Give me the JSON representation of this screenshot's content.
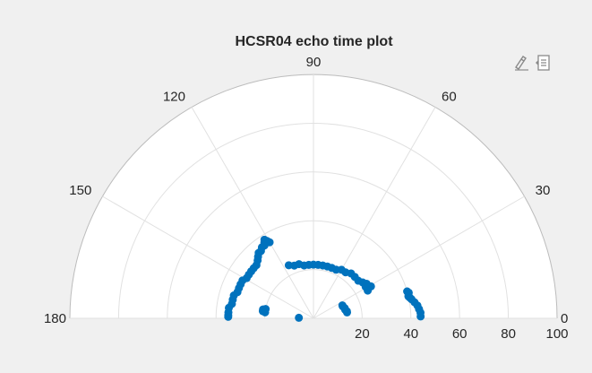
{
  "chart_data": {
    "type": "scatter",
    "coordinate_system": "polar",
    "title": "HCSR04 echo time plot",
    "theta_range_deg": [
      0,
      180
    ],
    "r_range": [
      0,
      100
    ],
    "theta_ticks": [
      0,
      30,
      60,
      90,
      120,
      150,
      180
    ],
    "theta_tick_labels": [
      "0",
      "30",
      "60",
      "90",
      "120",
      "150",
      "180"
    ],
    "r_ticks": [
      20,
      40,
      60,
      80,
      100
    ],
    "r_tick_labels": [
      "20",
      "40",
      "60",
      "80",
      "100"
    ],
    "grid": true,
    "marker_color": "#0072bd",
    "points": [
      {
        "theta": 1,
        "r": 44
      },
      {
        "theta": 3,
        "r": 44
      },
      {
        "theta": 5,
        "r": 43.5
      },
      {
        "theta": 7,
        "r": 43
      },
      {
        "theta": 9,
        "r": 42
      },
      {
        "theta": 11,
        "r": 41
      },
      {
        "theta": 12,
        "r": 40.5
      },
      {
        "theta": 13,
        "r": 40
      },
      {
        "theta": 15,
        "r": 40.5
      },
      {
        "theta": 16,
        "r": 40
      },
      {
        "theta": 10,
        "r": 14
      },
      {
        "theta": 12,
        "r": 14
      },
      {
        "theta": 15,
        "r": 13.5
      },
      {
        "theta": 18,
        "r": 13.5
      },
      {
        "theta": 22,
        "r": 13
      },
      {
        "theta": 24,
        "r": 13
      },
      {
        "theta": 27,
        "r": 25
      },
      {
        "theta": 29,
        "r": 27
      },
      {
        "theta": 31,
        "r": 25
      },
      {
        "theta": 33,
        "r": 26
      },
      {
        "theta": 36,
        "r": 25
      },
      {
        "theta": 40,
        "r": 24
      },
      {
        "theta": 45,
        "r": 24
      },
      {
        "theta": 50,
        "r": 24
      },
      {
        "theta": 55,
        "r": 23
      },
      {
        "theta": 60,
        "r": 23
      },
      {
        "theta": 65,
        "r": 22
      },
      {
        "theta": 70,
        "r": 22
      },
      {
        "theta": 75,
        "r": 22
      },
      {
        "theta": 80,
        "r": 22
      },
      {
        "theta": 85,
        "r": 22
      },
      {
        "theta": 90,
        "r": 22
      },
      {
        "theta": 95,
        "r": 22
      },
      {
        "theta": 100,
        "r": 22
      },
      {
        "theta": 105,
        "r": 23
      },
      {
        "theta": 110,
        "r": 23
      },
      {
        "theta": 115,
        "r": 24
      },
      {
        "theta": 120,
        "r": 36
      },
      {
        "theta": 121,
        "r": 37
      },
      {
        "theta": 122,
        "r": 38
      },
      {
        "theta": 123,
        "r": 37
      },
      {
        "theta": 124,
        "r": 36
      },
      {
        "theta": 126,
        "r": 36
      },
      {
        "theta": 128,
        "r": 35
      },
      {
        "theta": 130,
        "r": 35
      },
      {
        "theta": 132,
        "r": 34
      },
      {
        "theta": 134,
        "r": 33
      },
      {
        "theta": 137,
        "r": 32
      },
      {
        "theta": 140,
        "r": 32
      },
      {
        "theta": 143,
        "r": 32
      },
      {
        "theta": 146,
        "r": 32
      },
      {
        "theta": 149,
        "r": 32
      },
      {
        "theta": 152,
        "r": 33
      },
      {
        "theta": 155,
        "r": 33
      },
      {
        "theta": 158,
        "r": 33
      },
      {
        "theta": 161,
        "r": 33
      },
      {
        "theta": 164,
        "r": 34
      },
      {
        "theta": 167,
        "r": 34
      },
      {
        "theta": 170,
        "r": 34
      },
      {
        "theta": 173,
        "r": 35
      },
      {
        "theta": 176,
        "r": 35
      },
      {
        "theta": 178,
        "r": 35
      },
      {
        "theta": 179,
        "r": 35
      },
      {
        "theta": 169,
        "r": 20
      },
      {
        "theta": 170,
        "r": 21
      },
      {
        "theta": 172,
        "r": 21
      },
      {
        "theta": 173,
        "r": 20
      },
      {
        "theta": 178,
        "r": 6
      }
    ]
  },
  "toolbar": {
    "icons": [
      "brush-data-icon",
      "data-tips-icon"
    ]
  }
}
